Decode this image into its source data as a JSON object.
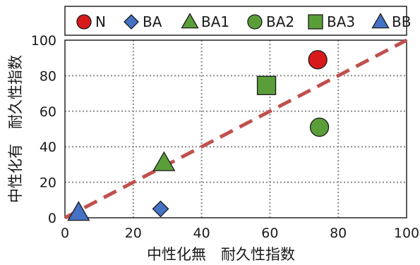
{
  "chart_data": {
    "type": "scatter",
    "xlabel": "中性化無　耐久性指数",
    "ylabel": "中性化有　耐久性指数",
    "xlim": [
      0,
      100
    ],
    "ylim": [
      0,
      100
    ],
    "xticks": [
      0,
      20,
      40,
      60,
      80,
      100
    ],
    "yticks": [
      0,
      20,
      40,
      60,
      80,
      100
    ],
    "grid": true,
    "legend_position": "top",
    "series": [
      {
        "name": "N",
        "marker": "circle",
        "color": "#d7191c",
        "points": [
          {
            "x": 74,
            "y": 89
          }
        ]
      },
      {
        "name": "BA",
        "marker": "diamond",
        "color": "#4472c4",
        "points": [
          {
            "x": 28,
            "y": 5
          }
        ]
      },
      {
        "name": "BA1",
        "marker": "triangle",
        "color": "#5a9e3a",
        "points": [
          {
            "x": 29,
            "y": 31
          }
        ]
      },
      {
        "name": "BA2",
        "marker": "circle",
        "color": "#5a9e3a",
        "points": [
          {
            "x": 74.5,
            "y": 51
          }
        ]
      },
      {
        "name": "BA3",
        "marker": "square",
        "color": "#5a9e3a",
        "points": [
          {
            "x": 59,
            "y": 74.5
          }
        ]
      },
      {
        "name": "BB",
        "marker": "triangle",
        "color": "#4472c4",
        "points": [
          {
            "x": 4,
            "y": 3
          }
        ]
      }
    ],
    "reference_line": {
      "x": [
        0,
        100
      ],
      "y": [
        0,
        100
      ],
      "style": "dashed",
      "color": "#c0504d"
    }
  }
}
